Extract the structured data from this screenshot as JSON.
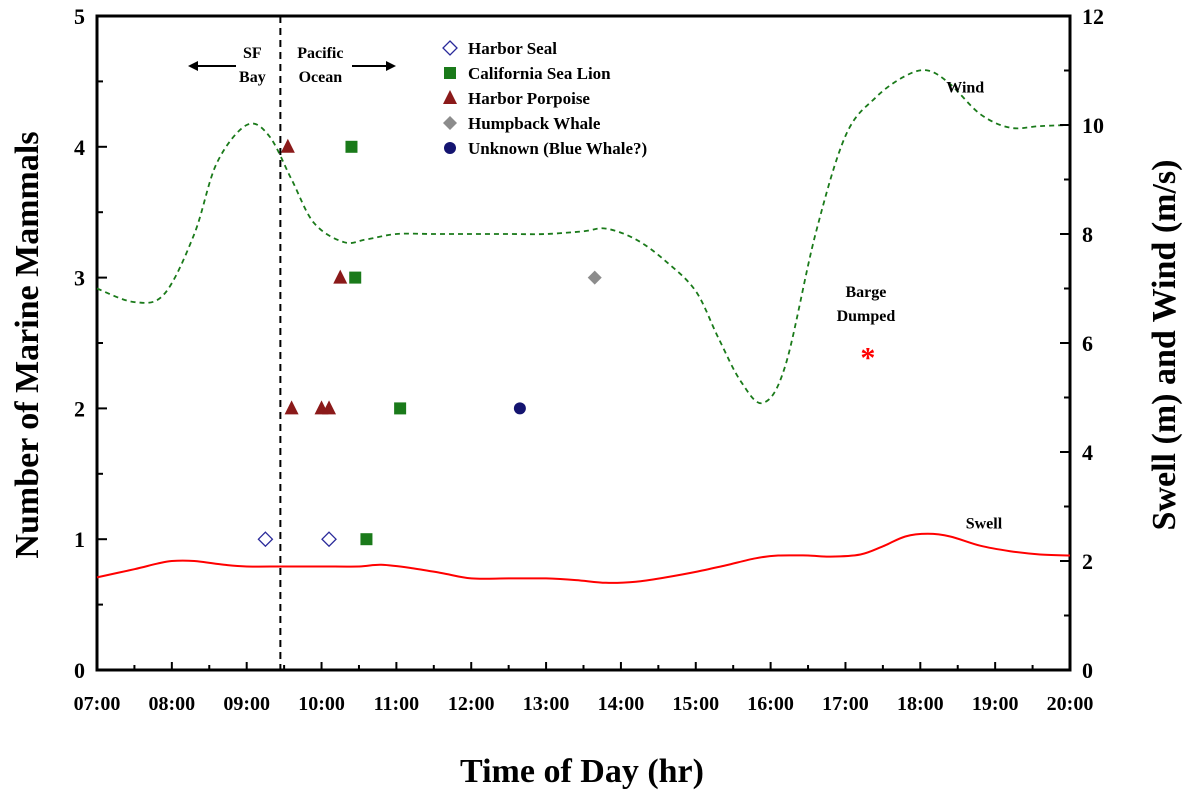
{
  "chart_data": {
    "type": "scatter",
    "xlabel": "Time of Day (hr)",
    "ylabel_left": "Number of Marine Mammals",
    "ylabel_right": "Swell (m) and Wind (m/s)",
    "x_ticks": [
      "07:00",
      "08:00",
      "09:00",
      "10:00",
      "11:00",
      "12:00",
      "13:00",
      "14:00",
      "15:00",
      "16:00",
      "17:00",
      "18:00",
      "19:00",
      "20:00"
    ],
    "xlim_hours": [
      7,
      20
    ],
    "ylim_left": [
      0,
      5
    ],
    "yticks_left": [
      "0",
      "1",
      "2",
      "3",
      "4",
      "5"
    ],
    "ylim_right": [
      0,
      12
    ],
    "yticks_right": [
      "0",
      "2",
      "4",
      "6",
      "8",
      "10",
      "12"
    ],
    "legend": [
      {
        "name": "Harbor Seal",
        "marker": "diamond-open",
        "color": "#2a2a9a"
      },
      {
        "name": "California Sea Lion",
        "marker": "square",
        "color": "#1a7a1a"
      },
      {
        "name": "Harbor Porpoise",
        "marker": "triangle",
        "color": "#8b1a1a"
      },
      {
        "name": "Humpback Whale",
        "marker": "diamond",
        "color": "#8c8c8c"
      },
      {
        "name": "Unknown (Blue Whale?)",
        "marker": "circle",
        "color": "#141470"
      }
    ],
    "series": [
      {
        "name": "Harbor Seal",
        "points": [
          [
            9.25,
            1
          ],
          [
            10.1,
            1
          ]
        ]
      },
      {
        "name": "California Sea Lion",
        "points": [
          [
            10.4,
            4
          ],
          [
            10.45,
            3
          ],
          [
            11.05,
            2
          ],
          [
            10.6,
            1
          ]
        ]
      },
      {
        "name": "Harbor Porpoise",
        "points": [
          [
            9.55,
            4
          ],
          [
            10.25,
            3
          ],
          [
            9.6,
            2
          ],
          [
            10.0,
            2
          ],
          [
            10.1,
            2
          ]
        ]
      },
      {
        "name": "Humpback Whale",
        "points": [
          [
            13.65,
            3
          ]
        ]
      },
      {
        "name": "Unknown (Blue Whale?)",
        "points": [
          [
            12.65,
            2
          ]
        ]
      }
    ],
    "lines": [
      {
        "name": "Wind",
        "axis": "right",
        "style": "dashed",
        "color": "#1a7a1a",
        "points": [
          [
            7,
            7
          ],
          [
            7.5,
            6.75
          ],
          [
            7.9,
            6.9
          ],
          [
            8.3,
            8
          ],
          [
            8.6,
            9.3
          ],
          [
            9.0,
            10
          ],
          [
            9.3,
            9.8
          ],
          [
            9.6,
            9
          ],
          [
            9.9,
            8.2
          ],
          [
            10.3,
            7.85
          ],
          [
            10.6,
            7.9
          ],
          [
            11,
            8
          ],
          [
            11.5,
            8
          ],
          [
            12,
            8
          ],
          [
            12.5,
            8
          ],
          [
            13,
            8
          ],
          [
            13.5,
            8.05
          ],
          [
            13.8,
            8.1
          ],
          [
            14.2,
            7.9
          ],
          [
            14.6,
            7.5
          ],
          [
            15.0,
            6.95
          ],
          [
            15.3,
            6.1
          ],
          [
            15.6,
            5.3
          ],
          [
            15.9,
            4.9
          ],
          [
            16.2,
            5.6
          ],
          [
            16.6,
            8
          ],
          [
            17.0,
            9.8
          ],
          [
            17.4,
            10.5
          ],
          [
            17.8,
            10.9
          ],
          [
            18.1,
            11.0
          ],
          [
            18.4,
            10.75
          ],
          [
            18.8,
            10.2
          ],
          [
            19.2,
            9.95
          ],
          [
            19.6,
            9.98
          ],
          [
            20,
            10
          ]
        ]
      },
      {
        "name": "Swell",
        "axis": "right",
        "style": "solid",
        "color": "#ff0000",
        "points": [
          [
            7,
            1.7
          ],
          [
            7.5,
            1.85
          ],
          [
            7.8,
            1.95
          ],
          [
            8.0,
            2.0
          ],
          [
            8.3,
            2.0
          ],
          [
            8.7,
            1.93
          ],
          [
            9.0,
            1.9
          ],
          [
            9.5,
            1.9
          ],
          [
            10,
            1.9
          ],
          [
            10.5,
            1.9
          ],
          [
            10.8,
            1.93
          ],
          [
            11.2,
            1.87
          ],
          [
            11.6,
            1.78
          ],
          [
            12.0,
            1.68
          ],
          [
            12.5,
            1.68
          ],
          [
            13.0,
            1.68
          ],
          [
            13.4,
            1.65
          ],
          [
            13.8,
            1.6
          ],
          [
            14.2,
            1.62
          ],
          [
            14.6,
            1.7
          ],
          [
            15.0,
            1.8
          ],
          [
            15.4,
            1.92
          ],
          [
            15.8,
            2.05
          ],
          [
            16.1,
            2.1
          ],
          [
            16.5,
            2.1
          ],
          [
            16.8,
            2.08
          ],
          [
            17.2,
            2.12
          ],
          [
            17.5,
            2.27
          ],
          [
            17.8,
            2.45
          ],
          [
            18.1,
            2.5
          ],
          [
            18.4,
            2.45
          ],
          [
            18.8,
            2.28
          ],
          [
            19.2,
            2.18
          ],
          [
            19.6,
            2.12
          ],
          [
            20,
            2.1
          ]
        ]
      }
    ],
    "line_labels": [
      {
        "text": "Wind",
        "x": 18.6,
        "y": 10.6
      },
      {
        "text": "Swell",
        "x": 18.85,
        "y": 2.6
      }
    ],
    "vertical_marker": {
      "x": 9.45,
      "style": "dashed"
    },
    "region_labels": [
      {
        "lines": [
          "SF",
          "Bay"
        ],
        "direction": "left"
      },
      {
        "lines": [
          "Pacific",
          "Ocean"
        ],
        "direction": "right"
      }
    ],
    "annotation": {
      "lines": [
        "Barge",
        "Dumped"
      ],
      "symbol": "*",
      "symbol_color": "#ff0000",
      "x": 17.3,
      "y_left": 2.45
    },
    "grid": false,
    "legend_position": "top-center"
  }
}
